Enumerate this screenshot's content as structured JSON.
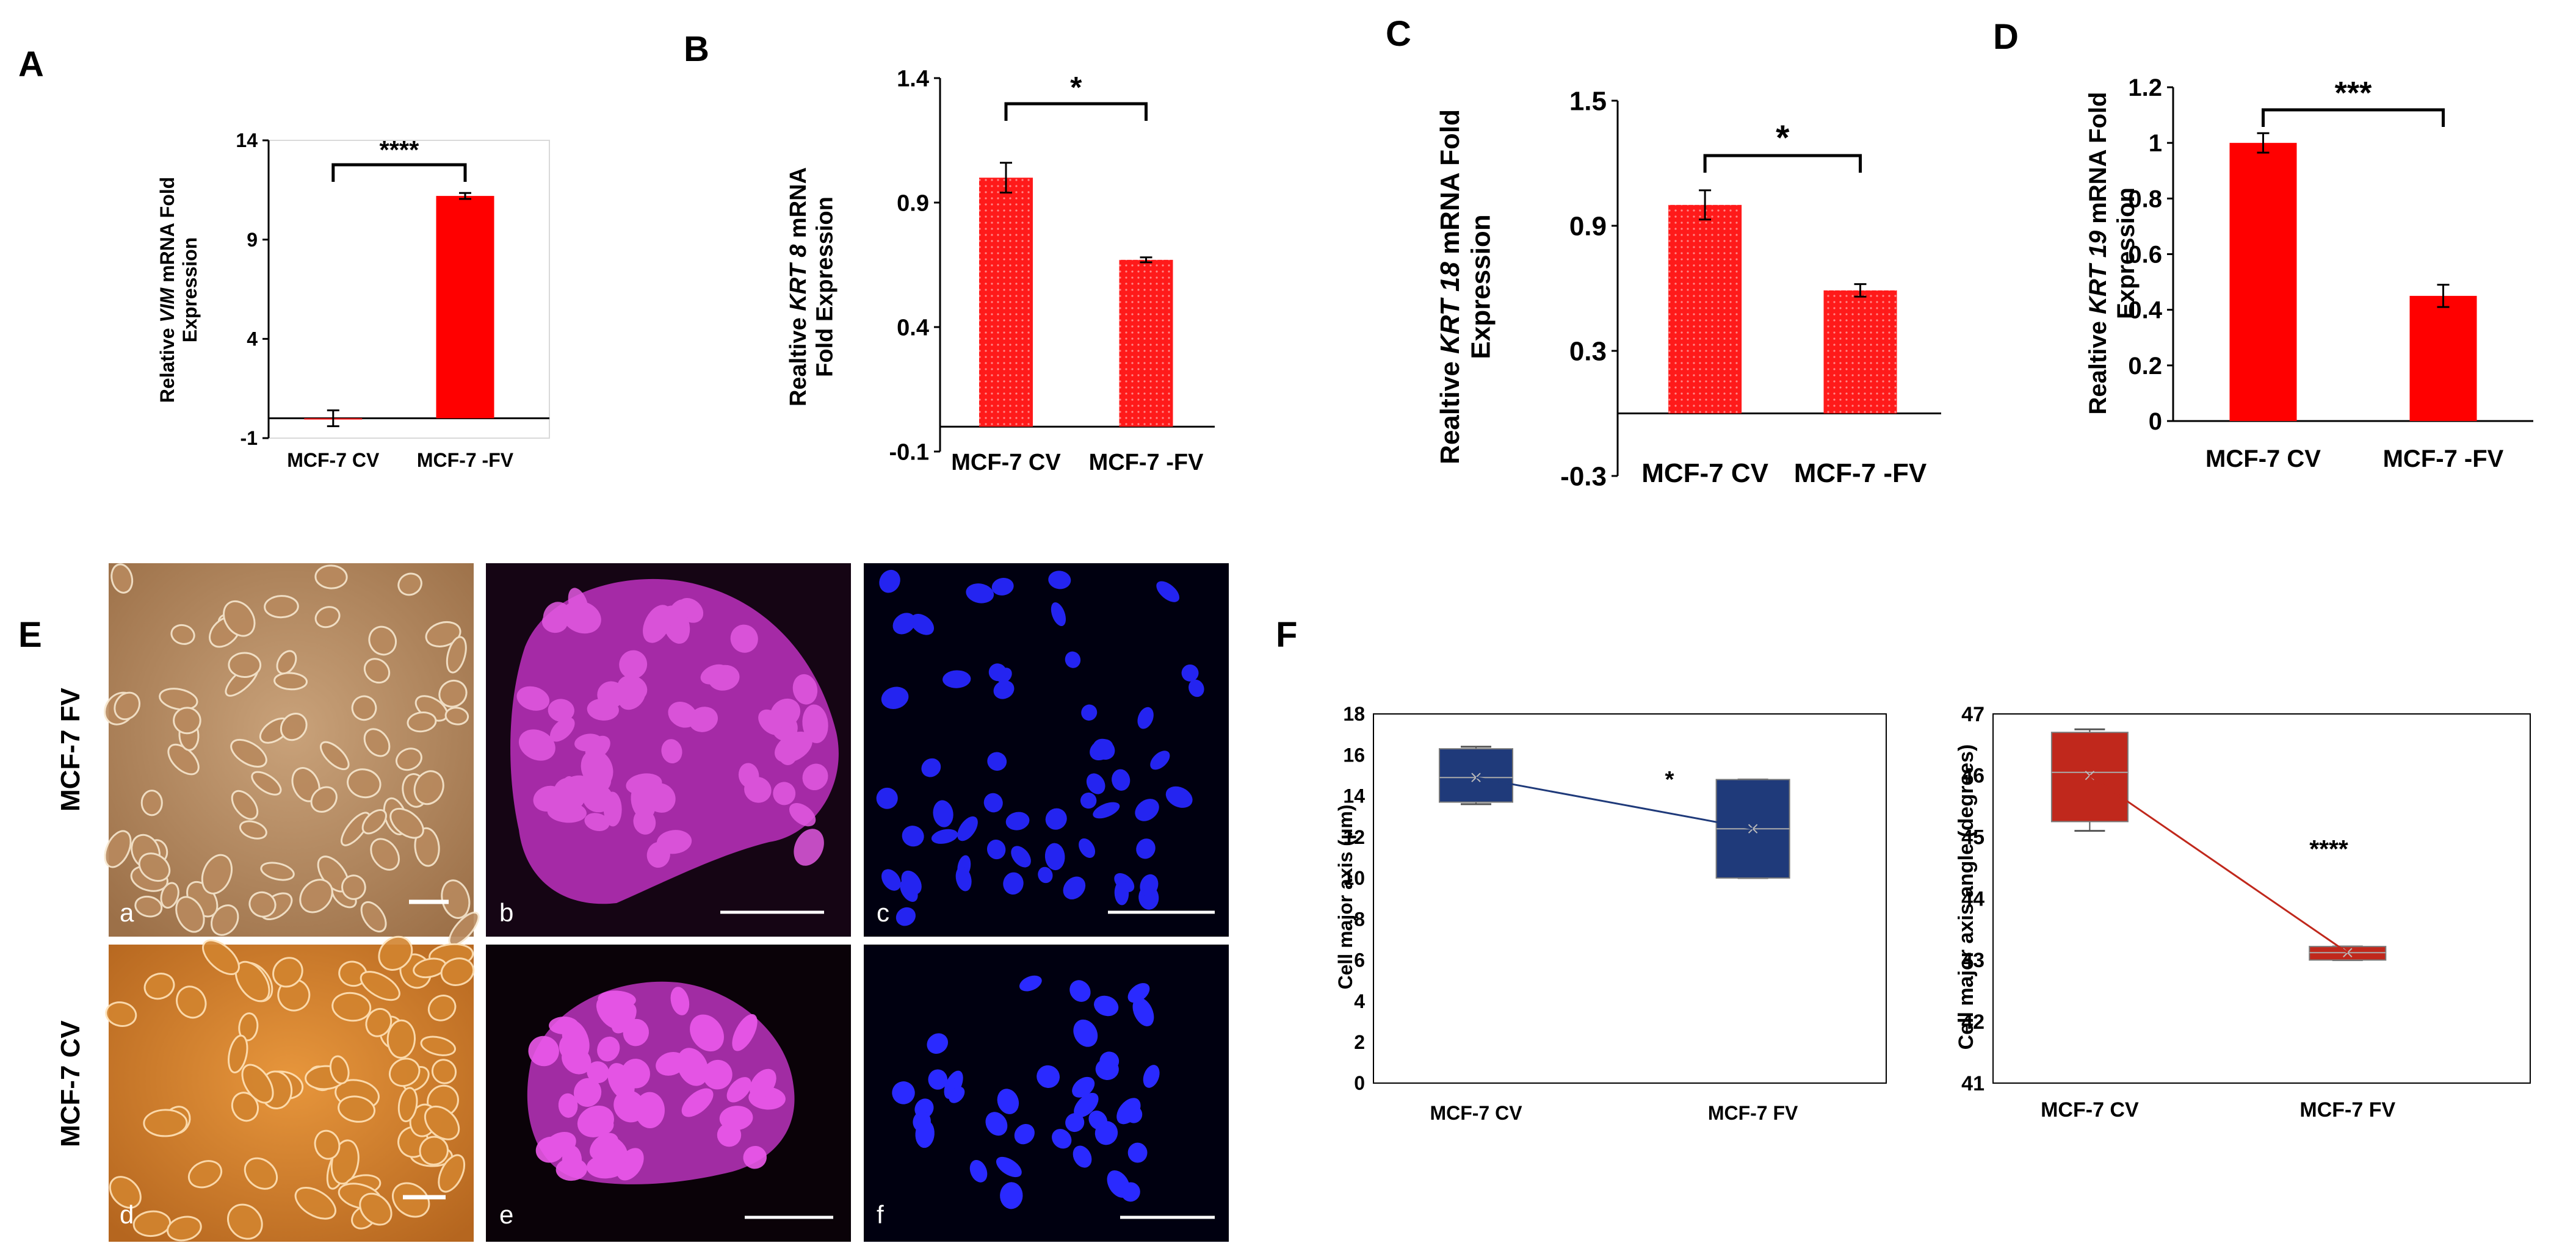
{
  "panel_letters": [
    "A",
    "B",
    "C",
    "D",
    "E",
    "F"
  ],
  "colors": {
    "bar_red": "#ff0000",
    "bar_red_dotted": "#ff3b3b",
    "box_blue": "#1f3a7a",
    "box_red": "#c0281c",
    "phase_contrast": "#c8925a",
    "phase_contrast_cv": "#d98d38",
    "magenta_stain": "#cc33cc",
    "nuclei_blue": "#1a1aff"
  },
  "chart_data": [
    {
      "panel": "A",
      "type": "bar",
      "categories": [
        "MCF-7 CV",
        "MCF-7 -FV"
      ],
      "values": [
        0.0,
        11.2
      ],
      "errors": [
        0.4,
        0.15
      ],
      "ylabel_parts": [
        "Relative ",
        "VIM",
        " mRNA Fold"
      ],
      "ylabel_line2": "Expression",
      "ylim": [
        -1,
        14
      ],
      "yticks": [
        "-1",
        "4",
        "9",
        "14"
      ],
      "yticks_values": [
        -1,
        4,
        9,
        14
      ],
      "significance": "****",
      "style": "solid"
    },
    {
      "panel": "B",
      "type": "bar",
      "categories": [
        "MCF-7 CV",
        "MCF-7 -FV"
      ],
      "values": [
        1.0,
        0.67
      ],
      "errors": [
        0.06,
        0.01
      ],
      "ylabel_parts": [
        "Realtive ",
        "KRT 8",
        " mRNA"
      ],
      "ylabel_line2": "Fold Expression",
      "ylim": [
        -0.1,
        1.4
      ],
      "yticks": [
        "-0.1",
        "0.4",
        "0.9",
        "1.4"
      ],
      "yticks_values": [
        -0.1,
        0.4,
        0.9,
        1.4
      ],
      "significance": "*",
      "style": "dotted"
    },
    {
      "panel": "C",
      "type": "bar",
      "categories": [
        "MCF-7 CV",
        "MCF-7 -FV"
      ],
      "values": [
        1.0,
        0.59
      ],
      "errors": [
        0.07,
        0.03
      ],
      "ylabel_parts": [
        "Realtive  ",
        "KRT 18",
        " mRNA Fold"
      ],
      "ylabel_line2": "Expression",
      "ylim": [
        -0.3,
        1.5
      ],
      "yticks": [
        "-0.3",
        "0.3",
        "0.9",
        "1.5"
      ],
      "yticks_values": [
        -0.3,
        0.3,
        0.9,
        1.5
      ],
      "significance": "*",
      "style": "dotted"
    },
    {
      "panel": "D",
      "type": "bar",
      "categories": [
        "MCF-7 CV",
        "MCF-7 -FV"
      ],
      "values": [
        1.0,
        0.45
      ],
      "errors": [
        0.035,
        0.04
      ],
      "ylabel_parts": [
        "Realtive ",
        "KRT 19",
        " mRNA Fold"
      ],
      "ylabel_line2": "Expression",
      "ylim": [
        0,
        1.2
      ],
      "yticks": [
        "0",
        "0.2",
        "0.4",
        "0.6",
        "0.8",
        "1",
        "1.2"
      ],
      "yticks_values": [
        0,
        0.2,
        0.4,
        0.6,
        0.8,
        1.0,
        1.2
      ],
      "significance": "***",
      "style": "solid"
    },
    {
      "panel": "F-left",
      "type": "box",
      "categories": [
        "MCF-7 CV",
        "MCF-7 FV"
      ],
      "boxes": [
        {
          "min": 13.6,
          "q1": 13.7,
          "median": 14.9,
          "q3": 16.3,
          "max": 16.4,
          "mean": 14.9
        },
        {
          "min": 10.0,
          "q1": 10.0,
          "median": 12.4,
          "q3": 14.8,
          "max": 14.8,
          "mean": 12.4
        }
      ],
      "ylabel": "Cell major axis  (µm)",
      "ylim": [
        0,
        18
      ],
      "yticks": [
        "0",
        "2",
        "4",
        "6",
        "8",
        "10",
        "12",
        "14",
        "16",
        "18"
      ],
      "yticks_values": [
        0,
        2,
        4,
        6,
        8,
        10,
        12,
        14,
        16,
        18
      ],
      "significance": "*"
    },
    {
      "panel": "F-right",
      "type": "box",
      "categories": [
        "MCF-7 CV",
        "MCF-7 FV"
      ],
      "boxes": [
        {
          "min": 45.1,
          "q1": 45.25,
          "median": 46.05,
          "q3": 46.7,
          "max": 46.75,
          "mean": 46.0
        },
        {
          "min": 43.0,
          "q1": 43.0,
          "median": 43.12,
          "q3": 43.22,
          "max": 43.22,
          "mean": 43.12
        }
      ],
      "ylabel": "Cell major axis angle (degrees)",
      "ylim": [
        41,
        47
      ],
      "yticks": [
        "41",
        "42",
        "43",
        "44",
        "45",
        "46",
        "47"
      ],
      "yticks_values": [
        41,
        42,
        43,
        44,
        45,
        46,
        47
      ],
      "significance": "****"
    }
  ],
  "micrographs": {
    "row_labels": [
      "MCF-7 FV",
      "MCF-7 CV"
    ],
    "sublabels": [
      "a",
      "b",
      "c",
      "d",
      "e",
      "f"
    ]
  }
}
